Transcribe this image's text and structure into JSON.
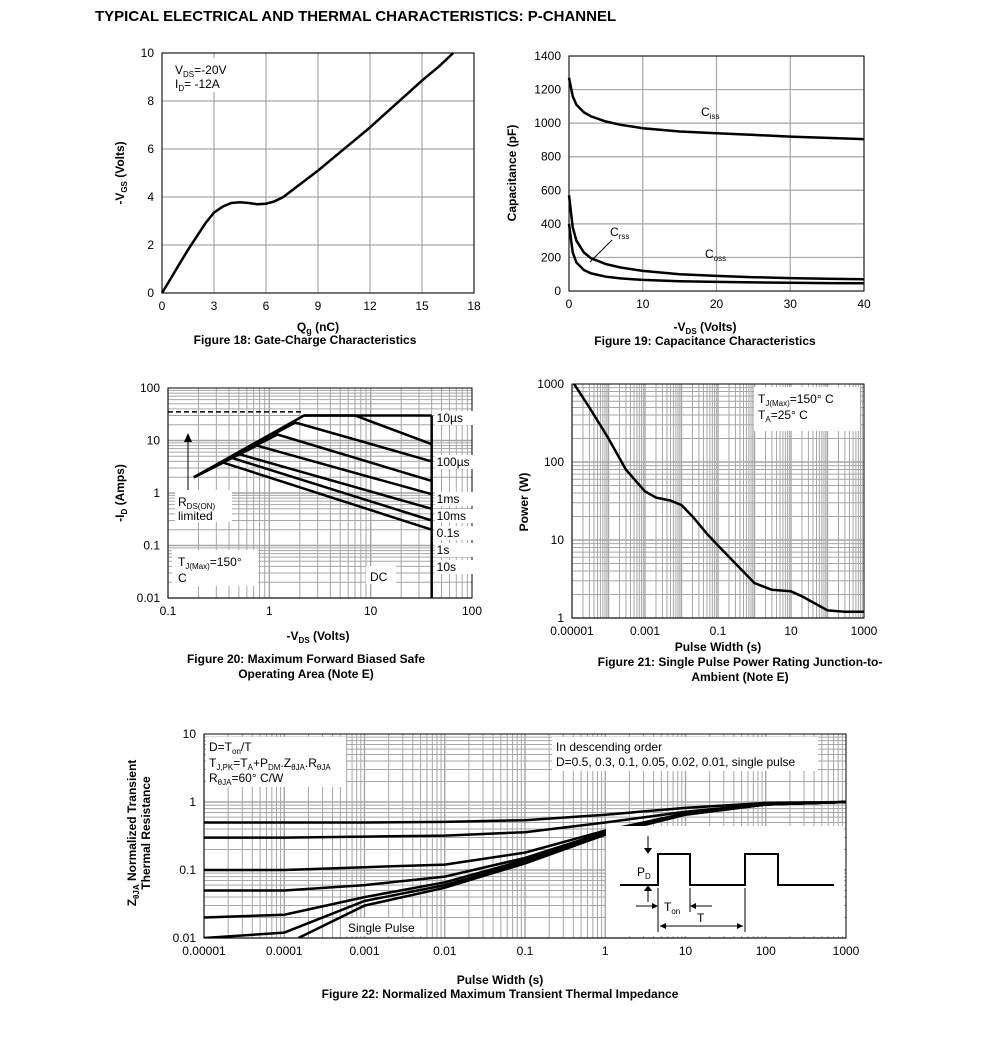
{
  "page": {
    "title": "TYPICAL ELECTRICAL AND THERMAL CHARACTERISTICS: P-CHANNEL"
  },
  "colors": {
    "line": "#000000",
    "grid": "#a6a6a6",
    "background": "#ffffff"
  },
  "chart_data": [
    {
      "id": "fig18",
      "type": "line",
      "caption": "Figure 18: Gate-Charge Characteristics",
      "xlabel_main": "Q",
      "xlabel_sub": "g",
      "xlabel_rest": " (nC)",
      "ylabel_pre": "-V",
      "ylabel_sub": "GS",
      "ylabel_rest": " (Volts)",
      "xlim": [
        0,
        18
      ],
      "ylim": [
        0,
        10
      ],
      "xticks": [
        0,
        3,
        6,
        9,
        12,
        15,
        18
      ],
      "yticks": [
        0,
        2,
        4,
        6,
        8,
        10
      ],
      "grid": true,
      "annotation": {
        "line1_main": "V",
        "line1_sub": "DS",
        "line1_rest": "=-20V",
        "line2_main": "I",
        "line2_sub": "D",
        "line2_rest": "= -12A"
      },
      "series": [
        {
          "x": [
            0,
            0.5,
            1,
            1.5,
            2,
            2.5,
            3,
            3.5,
            4,
            4.5,
            5,
            5.5,
            6,
            6.5,
            7,
            8,
            9,
            10,
            11,
            12,
            13,
            14,
            15,
            16,
            16.8
          ],
          "y": [
            0,
            0.6,
            1.2,
            1.8,
            2.35,
            2.9,
            3.35,
            3.6,
            3.75,
            3.78,
            3.75,
            3.7,
            3.72,
            3.82,
            4.0,
            4.55,
            5.1,
            5.7,
            6.3,
            6.9,
            7.55,
            8.2,
            8.85,
            9.45,
            10.0
          ]
        }
      ]
    },
    {
      "id": "fig19",
      "type": "line",
      "caption": "Figure 19: Capacitance Characteristics",
      "xlabel_pre": "-V",
      "xlabel_sub": "DS",
      "xlabel_rest": " (Volts)",
      "ylabel": "Capacitance (pF)",
      "xlim": [
        0,
        40
      ],
      "ylim": [
        0,
        1400
      ],
      "xticks": [
        0,
        10,
        20,
        30,
        40
      ],
      "yticks": [
        0,
        200,
        400,
        600,
        800,
        1000,
        1200,
        1400
      ],
      "grid": true,
      "series": [
        {
          "name_main": "C",
          "name_sub": "iss",
          "x": [
            0,
            0.5,
            1,
            2,
            3,
            5,
            7,
            10,
            15,
            20,
            25,
            30,
            35,
            40
          ],
          "y": [
            1270,
            1160,
            1110,
            1065,
            1040,
            1010,
            990,
            970,
            950,
            940,
            930,
            920,
            912,
            905
          ]
        },
        {
          "name_main": "C",
          "name_sub": "oss",
          "x": [
            0,
            0.5,
            1,
            2,
            3,
            5,
            7,
            10,
            15,
            20,
            25,
            30,
            35,
            40
          ],
          "y": [
            570,
            380,
            300,
            230,
            195,
            160,
            140,
            120,
            100,
            90,
            82,
            77,
            73,
            70
          ]
        },
        {
          "name_main": "C",
          "name_sub": "rss",
          "x": [
            0,
            0.5,
            1,
            2,
            3,
            5,
            7,
            10,
            15,
            20,
            25,
            30,
            35,
            40
          ],
          "y": [
            400,
            230,
            170,
            125,
            105,
            85,
            75,
            66,
            58,
            54,
            51,
            49,
            47,
            46
          ]
        }
      ]
    },
    {
      "id": "fig20",
      "type": "line",
      "caption_line1": "Figure 20: Maximum Forward Biased Safe",
      "caption_line2": "Operating Area (Note E)",
      "xlabel_pre": "-V",
      "xlabel_sub": "DS",
      "xlabel_rest": " (Volts)",
      "ylabel_pre": "-I",
      "ylabel_sub": "D",
      "ylabel_rest": " (Amps)",
      "xscale": "log",
      "yscale": "log",
      "xlim": [
        0.1,
        100
      ],
      "ylim": [
        0.01,
        100
      ],
      "xticks": [
        "0.1",
        "1",
        "10",
        "100"
      ],
      "yticks": [
        "0.01",
        "0.1",
        "1",
        "10",
        "100"
      ],
      "grid": true,
      "limits": {
        "current_max": 30,
        "vds_max": 40,
        "dashed_level": 35
      },
      "rds_label_main": "R",
      "rds_label_sub": "DS(ON)",
      "rds_label_line2": "limited",
      "tj_label_main": "T",
      "tj_label_sub": "J(Max)",
      "tj_label_rest": "=150°",
      "tj_label_line2": "C",
      "dc_label": "DC",
      "series": [
        {
          "name": "10µs",
          "x": [
            0.18,
            2.2,
            7,
            40
          ],
          "y": [
            2.0,
            30,
            30,
            8.5
          ]
        },
        {
          "name": "100µs",
          "x": [
            0.18,
            1.8,
            40
          ],
          "y": [
            2.0,
            22,
            4.0
          ]
        },
        {
          "name": "1ms",
          "x": [
            0.18,
            1.2,
            40
          ],
          "y": [
            2.0,
            13,
            1.7
          ]
        },
        {
          "name": "10ms",
          "x": [
            0.18,
            0.75,
            40
          ],
          "y": [
            2.0,
            8.0,
            0.95
          ]
        },
        {
          "name": "0.1s",
          "x": [
            0.18,
            0.5,
            40
          ],
          "y": [
            2.0,
            5.5,
            0.5
          ]
        },
        {
          "name": "1s",
          "x": [
            0.18,
            0.42,
            40
          ],
          "y": [
            2.0,
            4.7,
            0.3
          ]
        },
        {
          "name": "10s",
          "x": [
            0.18,
            0.35,
            40
          ],
          "y": [
            2.0,
            3.8,
            0.2
          ]
        }
      ]
    },
    {
      "id": "fig21",
      "type": "line",
      "caption_line1": "Figure 21: Single Pulse Power Rating Junction-to-",
      "caption_line2": "Ambient (Note E)",
      "xlabel": "Pulse Width (s)",
      "ylabel": "Power (W)",
      "xscale": "log",
      "yscale": "log",
      "xlim": [
        1e-05,
        1000
      ],
      "ylim": [
        1,
        1000
      ],
      "xticks": [
        "0.00001",
        "0.001",
        "0.1",
        "10",
        "1000"
      ],
      "yticks": [
        "1",
        "10",
        "100",
        "1000"
      ],
      "grid": true,
      "annotation": {
        "line1_main": "T",
        "line1_sub": "J(Max)",
        "line1_rest": "=150°  C",
        "line2_main": "T",
        "line2_sub": "A",
        "line2_rest": "=25°  C"
      },
      "series": [
        {
          "x": [
            1e-05,
            3e-05,
            0.0001,
            0.0003,
            0.001,
            0.002,
            0.005,
            0.01,
            0.02,
            0.05,
            0.1,
            0.3,
            1,
            3,
            10,
            20,
            50,
            100,
            300,
            1000
          ],
          "y": [
            1100,
            500,
            200,
            80,
            42,
            35,
            32,
            28,
            20,
            12,
            8.5,
            5,
            2.8,
            2.3,
            2.2,
            1.9,
            1.5,
            1.25,
            1.2,
            1.2
          ]
        }
      ]
    },
    {
      "id": "fig22",
      "type": "line",
      "caption": "Figure 22: Normalized Maximum Transient Thermal Impedance",
      "xlabel": "Pulse Width (s)",
      "ylabel_line1_main": "Z",
      "ylabel_line1_sub": "θJA",
      "ylabel_line1_rest": " Normalized Transient",
      "ylabel_line2": "Thermal Resistance",
      "xscale": "log",
      "yscale": "log",
      "xlim": [
        1e-05,
        1000
      ],
      "ylim": [
        0.01,
        10
      ],
      "xticks": [
        "0.00001",
        "0.0001",
        "0.001",
        "0.01",
        "0.1",
        "1",
        "10",
        "100",
        "1000"
      ],
      "yticks": [
        "0.01",
        "0.1",
        "1",
        "10"
      ],
      "grid": true,
      "annotation_left": {
        "line1_main": "D=T",
        "line1_sub": "on",
        "line1_rest": "/T",
        "line2_main": "T",
        "line2_sub": "J,PK",
        "line2_rest": "=T",
        "line2_sub2": "A",
        "line2_rest2": "+P",
        "line2_sub3": "DM",
        "line2_rest3": ".Z",
        "line2_sub4": "θJA",
        "line2_rest4": ".R",
        "line2_sub5": "θJA",
        "line3_main": "R",
        "line3_sub": "θJA",
        "line3_rest": "=60°  C/W"
      },
      "annotation_right": {
        "line1": "In descending order",
        "line2": "D=0.5, 0.3, 0.1, 0.05, 0.02, 0.01, single pulse"
      },
      "single_pulse_label": "Single Pulse",
      "inset": {
        "pd_main": "P",
        "pd_sub": "D",
        "ton_main": "T",
        "ton_sub": "on",
        "t_label": "T"
      },
      "x": [
        1e-05,
        0.0001,
        0.001,
        0.01,
        0.1,
        1,
        10,
        100,
        1000
      ],
      "series": [
        {
          "name": "D=0.5",
          "y": [
            0.5,
            0.5,
            0.5,
            0.51,
            0.54,
            0.65,
            0.82,
            0.97,
            1.0
          ]
        },
        {
          "name": "D=0.3",
          "y": [
            0.3,
            0.3,
            0.31,
            0.32,
            0.36,
            0.5,
            0.72,
            0.93,
            1.0
          ]
        },
        {
          "name": "D=0.1",
          "y": [
            0.1,
            0.1,
            0.11,
            0.12,
            0.18,
            0.38,
            0.68,
            0.92,
            1.0
          ]
        },
        {
          "name": "D=0.05",
          "y": [
            0.05,
            0.05,
            0.06,
            0.08,
            0.15,
            0.36,
            0.67,
            0.92,
            1.0
          ]
        },
        {
          "name": "D=0.02",
          "y": [
            0.02,
            0.022,
            0.04,
            0.066,
            0.14,
            0.35,
            0.66,
            0.92,
            1.0
          ]
        },
        {
          "name": "D=0.01",
          "y": [
            0.01,
            0.012,
            0.035,
            0.06,
            0.13,
            0.34,
            0.66,
            0.92,
            1.0
          ]
        },
        {
          "name": "single pulse",
          "y": [
            null,
            0.01,
            0.03,
            0.055,
            0.125,
            0.33,
            0.65,
            0.92,
            1.0
          ]
        }
      ]
    }
  ]
}
